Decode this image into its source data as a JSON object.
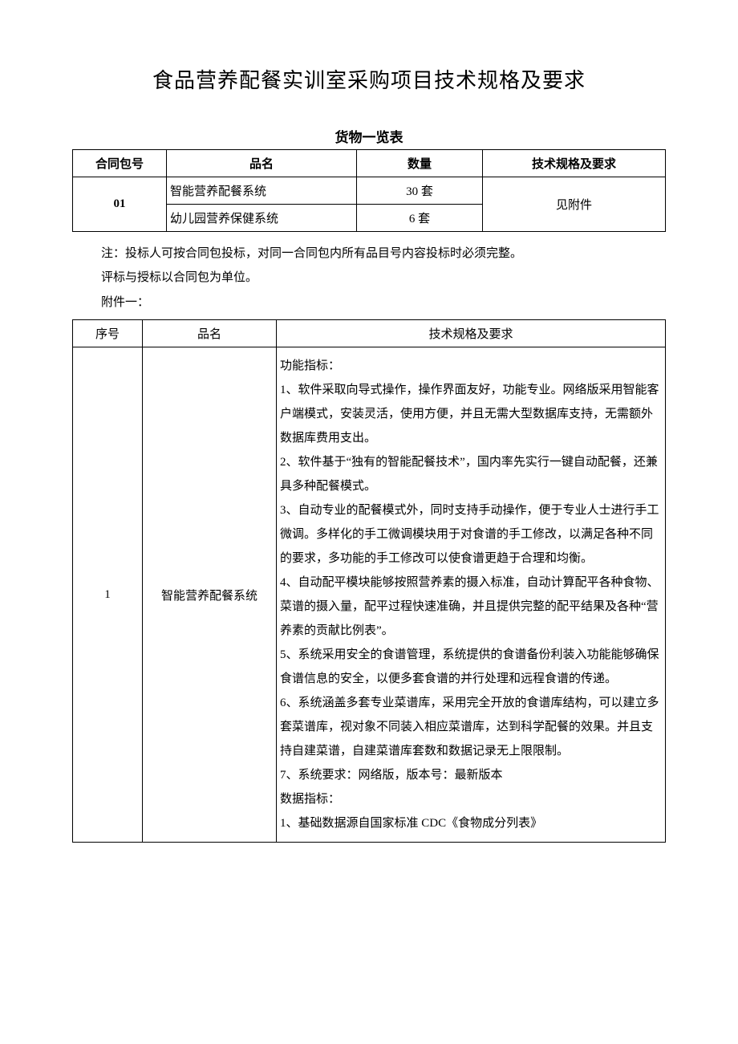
{
  "title": "食品营养配餐实训室采购项目技术规格及要求",
  "overview": {
    "subtitle": "货物一览表",
    "headers": {
      "package_no": "合同包号",
      "item_name": "品名",
      "quantity": "数量",
      "spec": "技术规格及要求"
    },
    "package_no": "01",
    "spec_text": "见附件",
    "rows": [
      {
        "name": "智能营养配餐系统",
        "qty": "30 套"
      },
      {
        "name": "幼儿园营养保健系统",
        "qty": "6 套"
      }
    ]
  },
  "notes": {
    "line1": "注：投标人可按合同包投标，对同一合同包内所有品目号内容投标时必须完整。",
    "line2": "评标与授标以合同包为单位。"
  },
  "attachment_label": "附件一：",
  "detail": {
    "headers": {
      "seq": "序号",
      "name": "品名",
      "spec": "技术规格及要求"
    },
    "row": {
      "seq": "1",
      "name": "智能营养配餐系统",
      "spec_lines": [
        "功能指标：",
        "1、软件采取向导式操作，操作界面友好，功能专业。网络版采用智能客户端模式，安装灵活，使用方便，并且无需大型数据库支持，无需额外数据库费用支出。",
        "2、软件基于“独有的智能配餐技术”，国内率先实行一键自动配餐，还兼具多种配餐模式。",
        "3、自动专业的配餐模式外，同时支持手动操作，便于专业人士进行手工微调。多样化的手工微调模块用于对食谱的手工修改，以满足各种不同的要求，多功能的手工修改可以使食谱更趋于合理和均衡。",
        "4、自动配平模块能够按照营养素的摄入标准，自动计算配平各种食物、菜谱的摄入量，配平过程快速准确，并且提供完整的配平结果及各种“营养素的贡献比例表”。",
        "5、系统采用安全的食谱管理，系统提供的食谱备份利装入功能能够确保食谱信息的安全，以便多套食谱的并行处理和远程食谱的传递。",
        "6、系统涵盖多套专业菜谱库，采用完全开放的食谱库结构，可以建立多套菜谱库，视对象不同装入相应菜谱库，达到科学配餐的效果。并且支持自建菜谱，自建菜谱库套数和数据记录无上限限制。",
        "7、系统要求：网络版，版本号：最新版本",
        "数据指标：",
        "1、基础数据源自国家标准 CDC《食物成分列表》"
      ]
    }
  }
}
